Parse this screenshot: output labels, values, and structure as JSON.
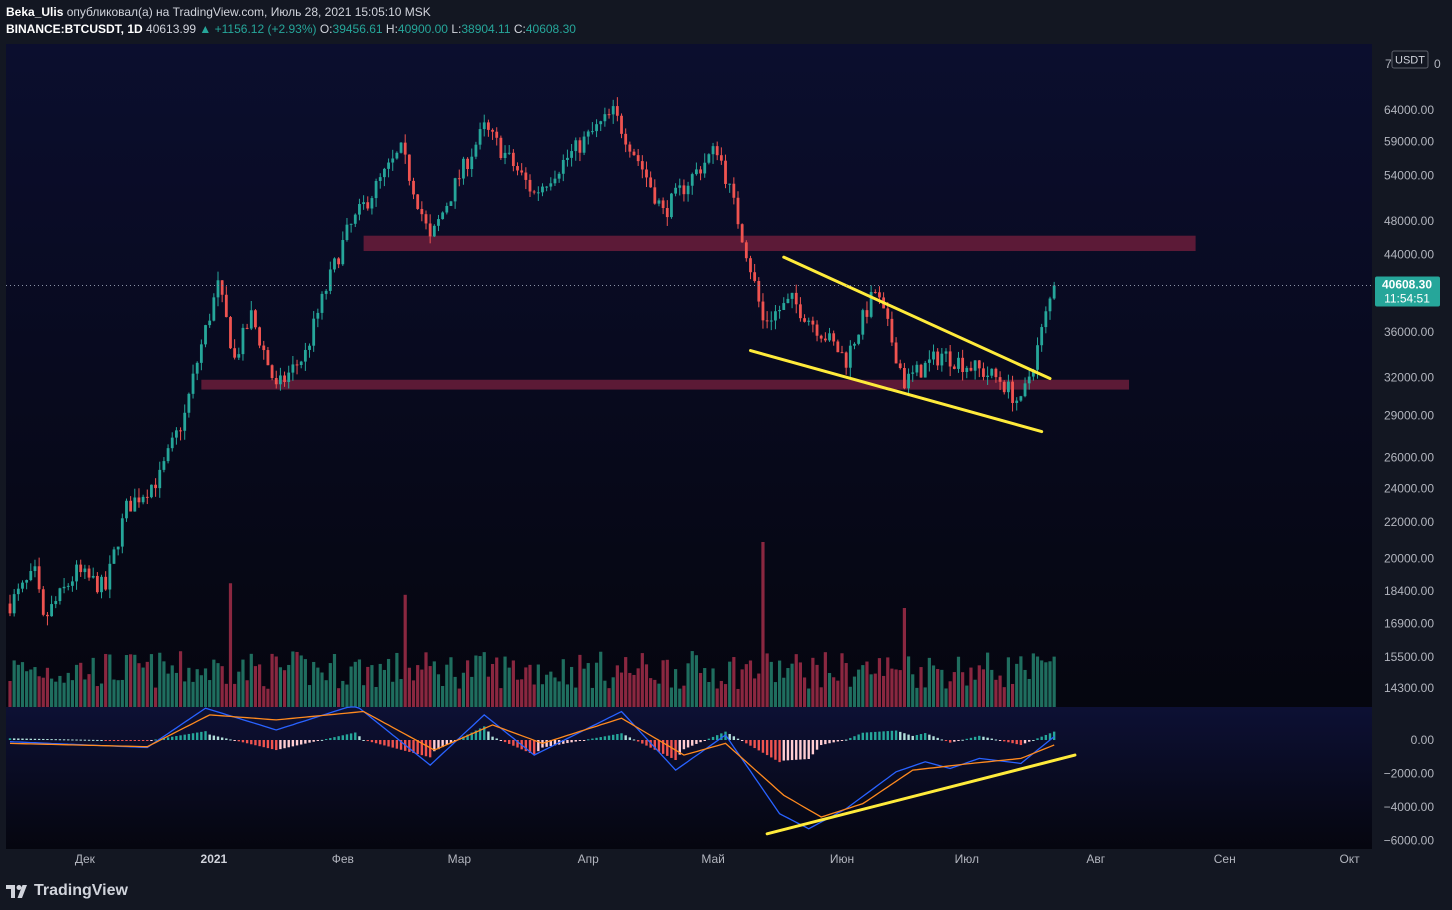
{
  "header": {
    "user": "Beka_Ulis",
    "published_text": "опубликовал(а) на TradingView.com, Июль 28, 2021 15:05:10 MSK",
    "symbol": "BINANCE:BTCUSDT, 1D",
    "last": "40613.99",
    "change": "▲ +1156.12 (+2.93%)",
    "o_label": "O:",
    "o_value": "39456.61",
    "h_label": "H:",
    "h_value": "40900.00",
    "l_label": "L:",
    "l_value": "38904.11",
    "c_label": "C:",
    "c_value": "40608.30"
  },
  "price_axis": {
    "currency": "USDT",
    "top_label_partial": "7",
    "top_label_right": "0",
    "current_price": "40608.30",
    "countdown": "11:54:51"
  },
  "footer": {
    "brand": "TradingView"
  },
  "colors": {
    "up": "#26a69a",
    "down": "#ef5350",
    "vol_up": "#1f6e5f",
    "vol_down": "#8a2740",
    "zone": "#6b1d3b",
    "trend": "#ffeb3b",
    "macd": "#2962ff",
    "signal": "#ff8a1f"
  },
  "chart_data": [
    {
      "type": "candlestick",
      "title": "",
      "scale": "log",
      "ylim": [
        14000,
        72000
      ],
      "xlabel": "",
      "ylabel": "",
      "x_ticks": [
        "Дек",
        "2021",
        "Фев",
        "Мар",
        "Апр",
        "Май",
        "Июн",
        "Июл",
        "Авг",
        "Сен",
        "Окт"
      ],
      "y_ticks": [
        "64000.00",
        "59000.00",
        "54000.00",
        "48000.00",
        "44000.00",
        "36000.00",
        "32000.00",
        "29000.00",
        "26000.00",
        "24000.00",
        "22000.00",
        "20000.00",
        "18400.00",
        "16900.00",
        "15500.00",
        "14300.00"
      ],
      "y_tick_values": [
        64000,
        59000,
        54000,
        48000,
        44000,
        36000,
        32000,
        29000,
        26000,
        24000,
        22000,
        20000,
        18400,
        16900,
        15500,
        14300
      ],
      "x_range": [
        "2020-11-19",
        "2021-07-28"
      ],
      "price_path": [
        [
          "2020-11-19",
          17800
        ],
        [
          "2020-11-25",
          19200
        ],
        [
          "2020-11-27",
          17000
        ],
        [
          "2020-12-05",
          19300
        ],
        [
          "2020-12-12",
          18500
        ],
        [
          "2020-12-17",
          22800
        ],
        [
          "2020-12-25",
          24700
        ],
        [
          "2020-12-31",
          29000
        ],
        [
          "2021-01-08",
          40500
        ],
        [
          "2021-01-12",
          33500
        ],
        [
          "2021-01-16",
          37500
        ],
        [
          "2021-01-22",
          31000
        ],
        [
          "2021-01-29",
          34000
        ],
        [
          "2021-02-08",
          46500
        ],
        [
          "2021-02-21",
          57500
        ],
        [
          "2021-02-28",
          45500
        ],
        [
          "2021-03-13",
          61000
        ],
        [
          "2021-03-25",
          51500
        ],
        [
          "2021-04-13",
          63500
        ],
        [
          "2021-04-25",
          49000
        ],
        [
          "2021-05-08",
          58000
        ],
        [
          "2021-05-12",
          50000
        ],
        [
          "2021-05-19",
          37000
        ],
        [
          "2021-05-26",
          39000
        ],
        [
          "2021-06-08",
          33500
        ],
        [
          "2021-06-15",
          40000
        ],
        [
          "2021-06-22",
          31600
        ],
        [
          "2021-07-01",
          34000
        ],
        [
          "2021-07-15",
          31800
        ],
        [
          "2021-07-20",
          29800
        ],
        [
          "2021-07-24",
          34500
        ],
        [
          "2021-07-28",
          40608
        ]
      ],
      "zones": [
        {
          "from": "2021-02-12",
          "to": "2021-08-31",
          "low": 44400,
          "high": 46200
        },
        {
          "from": "2021-01-04",
          "to": "2021-08-15",
          "low": 31000,
          "high": 31800
        }
      ],
      "trendlines": [
        {
          "from": [
            "2021-05-24",
            43700
          ],
          "to": [
            "2021-07-27",
            31900
          ]
        },
        {
          "from": [
            "2021-05-16",
            34300
          ],
          "to": [
            "2021-07-25",
            27800
          ]
        }
      ],
      "last_price": 40608.3
    },
    {
      "type": "bar",
      "title": "Volume",
      "note": "volume histogram overlaid on lower price pane, relative units",
      "spikes": [
        [
          "2021-01-11",
          0.75
        ],
        [
          "2021-02-22",
          0.68
        ],
        [
          "2021-05-19",
          1.0
        ],
        [
          "2021-06-22",
          0.6
        ]
      ]
    },
    {
      "type": "line",
      "title": "MACD",
      "y_ticks": [
        "0.00",
        "−2000.00",
        "−4000.00",
        "−6000.00"
      ],
      "y_tick_values": [
        0,
        -2000,
        -4000,
        -6000
      ],
      "ylim": [
        -6500,
        2000
      ],
      "series": [
        {
          "name": "",
          "path": [
            [
              "2020-11-19",
              -100
            ],
            [
              "2020-12-22",
              -450
            ],
            [
              "2021-01-05",
              1900
            ],
            [
              "2021-01-22",
              600
            ],
            [
              "2021-02-10",
              2100
            ],
            [
              "2021-02-28",
              -1500
            ],
            [
              "2021-03-13",
              1500
            ],
            [
              "2021-03-25",
              -900
            ],
            [
              "2021-04-15",
              1700
            ],
            [
              "2021-04-28",
              -1800
            ],
            [
              "2021-05-10",
              300
            ],
            [
              "2021-05-23",
              -4400
            ],
            [
              "2021-05-30",
              -5300
            ],
            [
              "2021-06-08",
              -4100
            ],
            [
              "2021-06-20",
              -1900
            ],
            [
              "2021-06-27",
              -1300
            ],
            [
              "2021-07-03",
              -1700
            ],
            [
              "2021-07-10",
              -1100
            ],
            [
              "2021-07-20",
              -1400
            ],
            [
              "2021-07-28",
              200
            ]
          ]
        },
        {
          "name": "",
          "path": [
            [
              "2020-11-19",
              -200
            ],
            [
              "2020-12-22",
              -400
            ],
            [
              "2021-01-06",
              1500
            ],
            [
              "2021-01-22",
              1200
            ],
            [
              "2021-02-12",
              1700
            ],
            [
              "2021-03-01",
              -600
            ],
            [
              "2021-03-15",
              900
            ],
            [
              "2021-03-27",
              -200
            ],
            [
              "2021-04-15",
              1300
            ],
            [
              "2021-04-30",
              -900
            ],
            [
              "2021-05-10",
              -200
            ],
            [
              "2021-05-24",
              -3300
            ],
            [
              "2021-06-02",
              -4600
            ],
            [
              "2021-06-12",
              -3800
            ],
            [
              "2021-06-24",
              -1800
            ],
            [
              "2021-07-08",
              -1400
            ],
            [
              "2021-07-20",
              -1100
            ],
            [
              "2021-07-28",
              -300
            ]
          ]
        }
      ],
      "trendline": {
        "from": [
          "2021-05-20",
          -5600
        ],
        "to": [
          "2021-08-02",
          -900
        ]
      }
    }
  ]
}
